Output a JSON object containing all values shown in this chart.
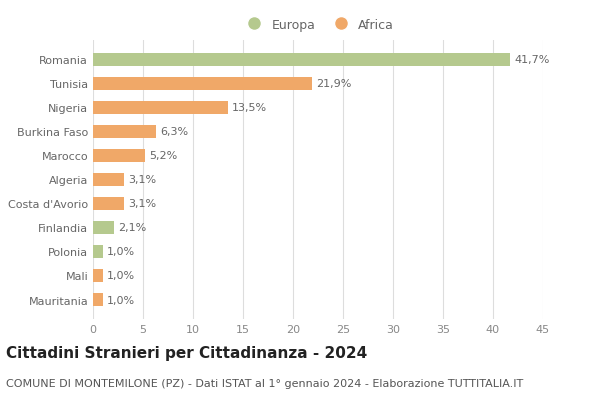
{
  "categories": [
    "Romania",
    "Tunisia",
    "Nigeria",
    "Burkina Faso",
    "Marocco",
    "Algeria",
    "Costa d'Avorio",
    "Finlandia",
    "Polonia",
    "Mali",
    "Mauritania"
  ],
  "values": [
    41.7,
    21.9,
    13.5,
    6.3,
    5.2,
    3.1,
    3.1,
    2.1,
    1.0,
    1.0,
    1.0
  ],
  "labels": [
    "41,7%",
    "21,9%",
    "13,5%",
    "6,3%",
    "5,2%",
    "3,1%",
    "3,1%",
    "2,1%",
    "1,0%",
    "1,0%",
    "1,0%"
  ],
  "colors": [
    "#b5c98e",
    "#f0a868",
    "#f0a868",
    "#f0a868",
    "#f0a868",
    "#f0a868",
    "#f0a868",
    "#b5c98e",
    "#b5c98e",
    "#f0a868",
    "#f0a868"
  ],
  "legend_europa_color": "#b5c98e",
  "legend_africa_color": "#f0a868",
  "title": "Cittadini Stranieri per Cittadinanza - 2024",
  "subtitle": "COMUNE DI MONTEMILONE (PZ) - Dati ISTAT al 1° gennaio 2024 - Elaborazione TUTTITALIA.IT",
  "xlim": [
    0,
    45
  ],
  "xticks": [
    0,
    5,
    10,
    15,
    20,
    25,
    30,
    35,
    40,
    45
  ],
  "background_color": "#ffffff",
  "grid_color": "#dddddd",
  "bar_height": 0.55,
  "title_fontsize": 11,
  "subtitle_fontsize": 8,
  "tick_fontsize": 8,
  "label_fontsize": 8,
  "legend_fontsize": 9
}
